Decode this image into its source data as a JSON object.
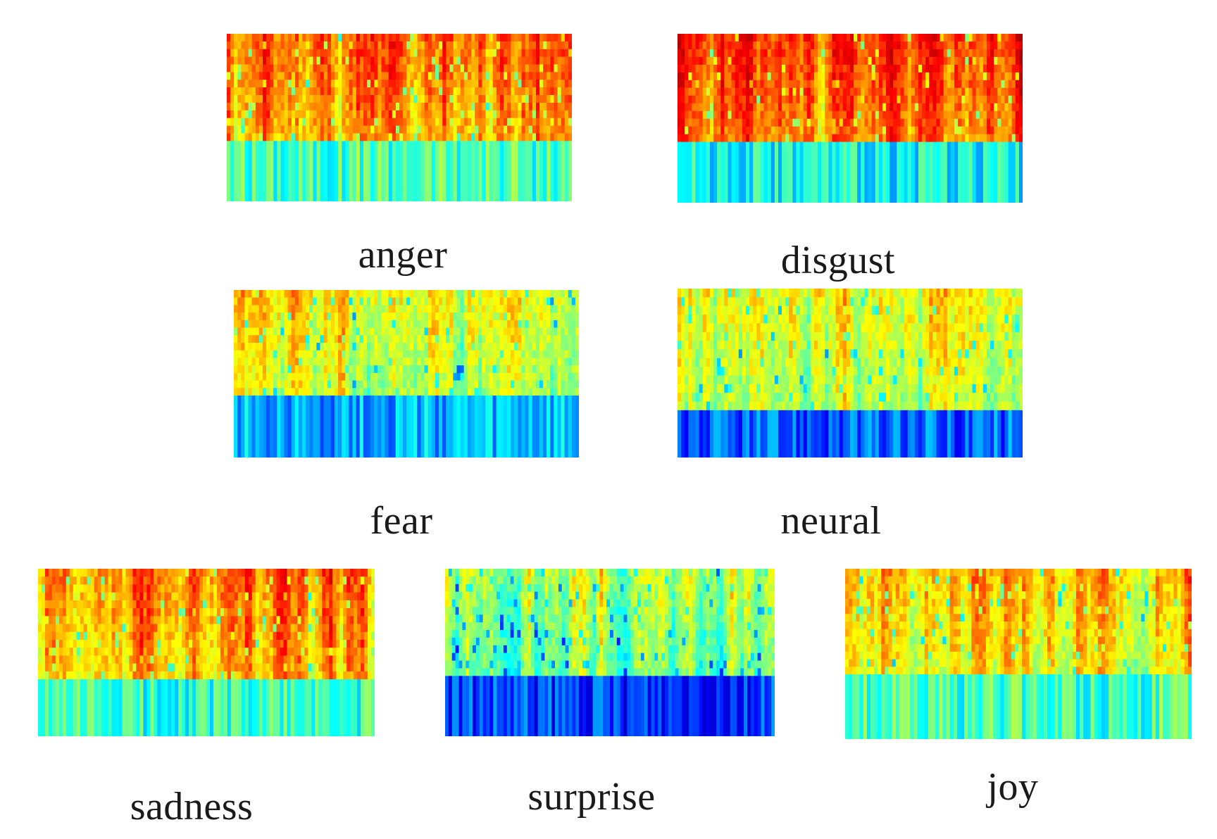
{
  "figure": {
    "panels": [
      {
        "id": "anger",
        "label": "anger",
        "style": {
          "hi": 0.78,
          "split": 0.64,
          "lowBase": 0.45,
          "seed": 11
        }
      },
      {
        "id": "disgust",
        "label": "disgust",
        "style": {
          "hi": 0.82,
          "split": 0.64,
          "lowBase": 0.38,
          "seed": 23
        }
      },
      {
        "id": "fear",
        "label": "fear",
        "style": {
          "hi": 0.62,
          "split": 0.63,
          "lowBase": 0.3,
          "seed": 37
        }
      },
      {
        "id": "neural",
        "label": "neural",
        "style": {
          "hi": 0.62,
          "split": 0.72,
          "lowBase": 0.22,
          "seed": 41
        }
      },
      {
        "id": "sadness",
        "label": "sadness",
        "style": {
          "hi": 0.76,
          "split": 0.66,
          "lowBase": 0.42,
          "seed": 53
        }
      },
      {
        "id": "surprise",
        "label": "surprise",
        "style": {
          "hi": 0.55,
          "split": 0.64,
          "lowBase": 0.18,
          "seed": 67
        }
      },
      {
        "id": "joy",
        "label": "joy",
        "style": {
          "hi": 0.7,
          "split": 0.62,
          "lowBase": 0.44,
          "seed": 79
        }
      }
    ],
    "colormap": [
      "#00007f",
      "#0000ff",
      "#0080ff",
      "#00ffff",
      "#80ff80",
      "#ffff00",
      "#ff8000",
      "#ff0000",
      "#b00000"
    ]
  }
}
